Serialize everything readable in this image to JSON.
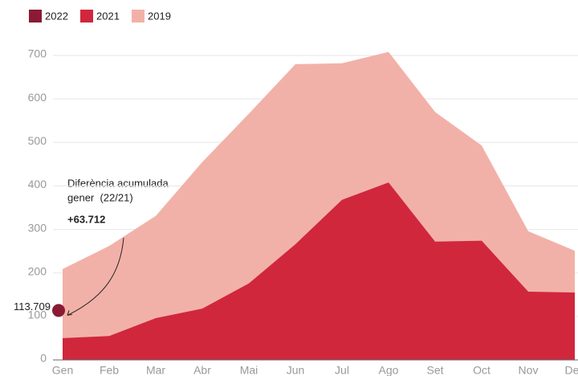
{
  "chart_data": {
    "type": "area",
    "categories": [
      "Gen",
      "Feb",
      "Mar",
      "Abr",
      "Mai",
      "Jun",
      "Jul",
      "Ago",
      "Set",
      "Oct",
      "Nov",
      "Des"
    ],
    "series": [
      {
        "name": "2022",
        "color": "#8b1a35",
        "values": [
          113.709,
          null,
          null,
          null,
          null,
          null,
          null,
          null,
          null,
          null,
          null,
          null
        ],
        "value_labels": [
          "113.709",
          null,
          null,
          null,
          null,
          null,
          null,
          null,
          null,
          null,
          null,
          null
        ]
      },
      {
        "name": "2021",
        "color": "#d0273d",
        "values": [
          50,
          55,
          96,
          118,
          176,
          266,
          368,
          408,
          272,
          274,
          157,
          155
        ]
      },
      {
        "name": "2019",
        "color": "#f2b1a8",
        "values": [
          209,
          262,
          331,
          455,
          566,
          680,
          682,
          708,
          570,
          493,
          296,
          251
        ]
      }
    ],
    "ylim": [
      0,
      700
    ],
    "yticks": [
      0,
      100,
      200,
      300,
      400,
      500,
      600,
      700
    ],
    "grid": true,
    "annotations": [
      "Diferència acumulada",
      "gener  (22/21)",
      "+63.712"
    ]
  }
}
